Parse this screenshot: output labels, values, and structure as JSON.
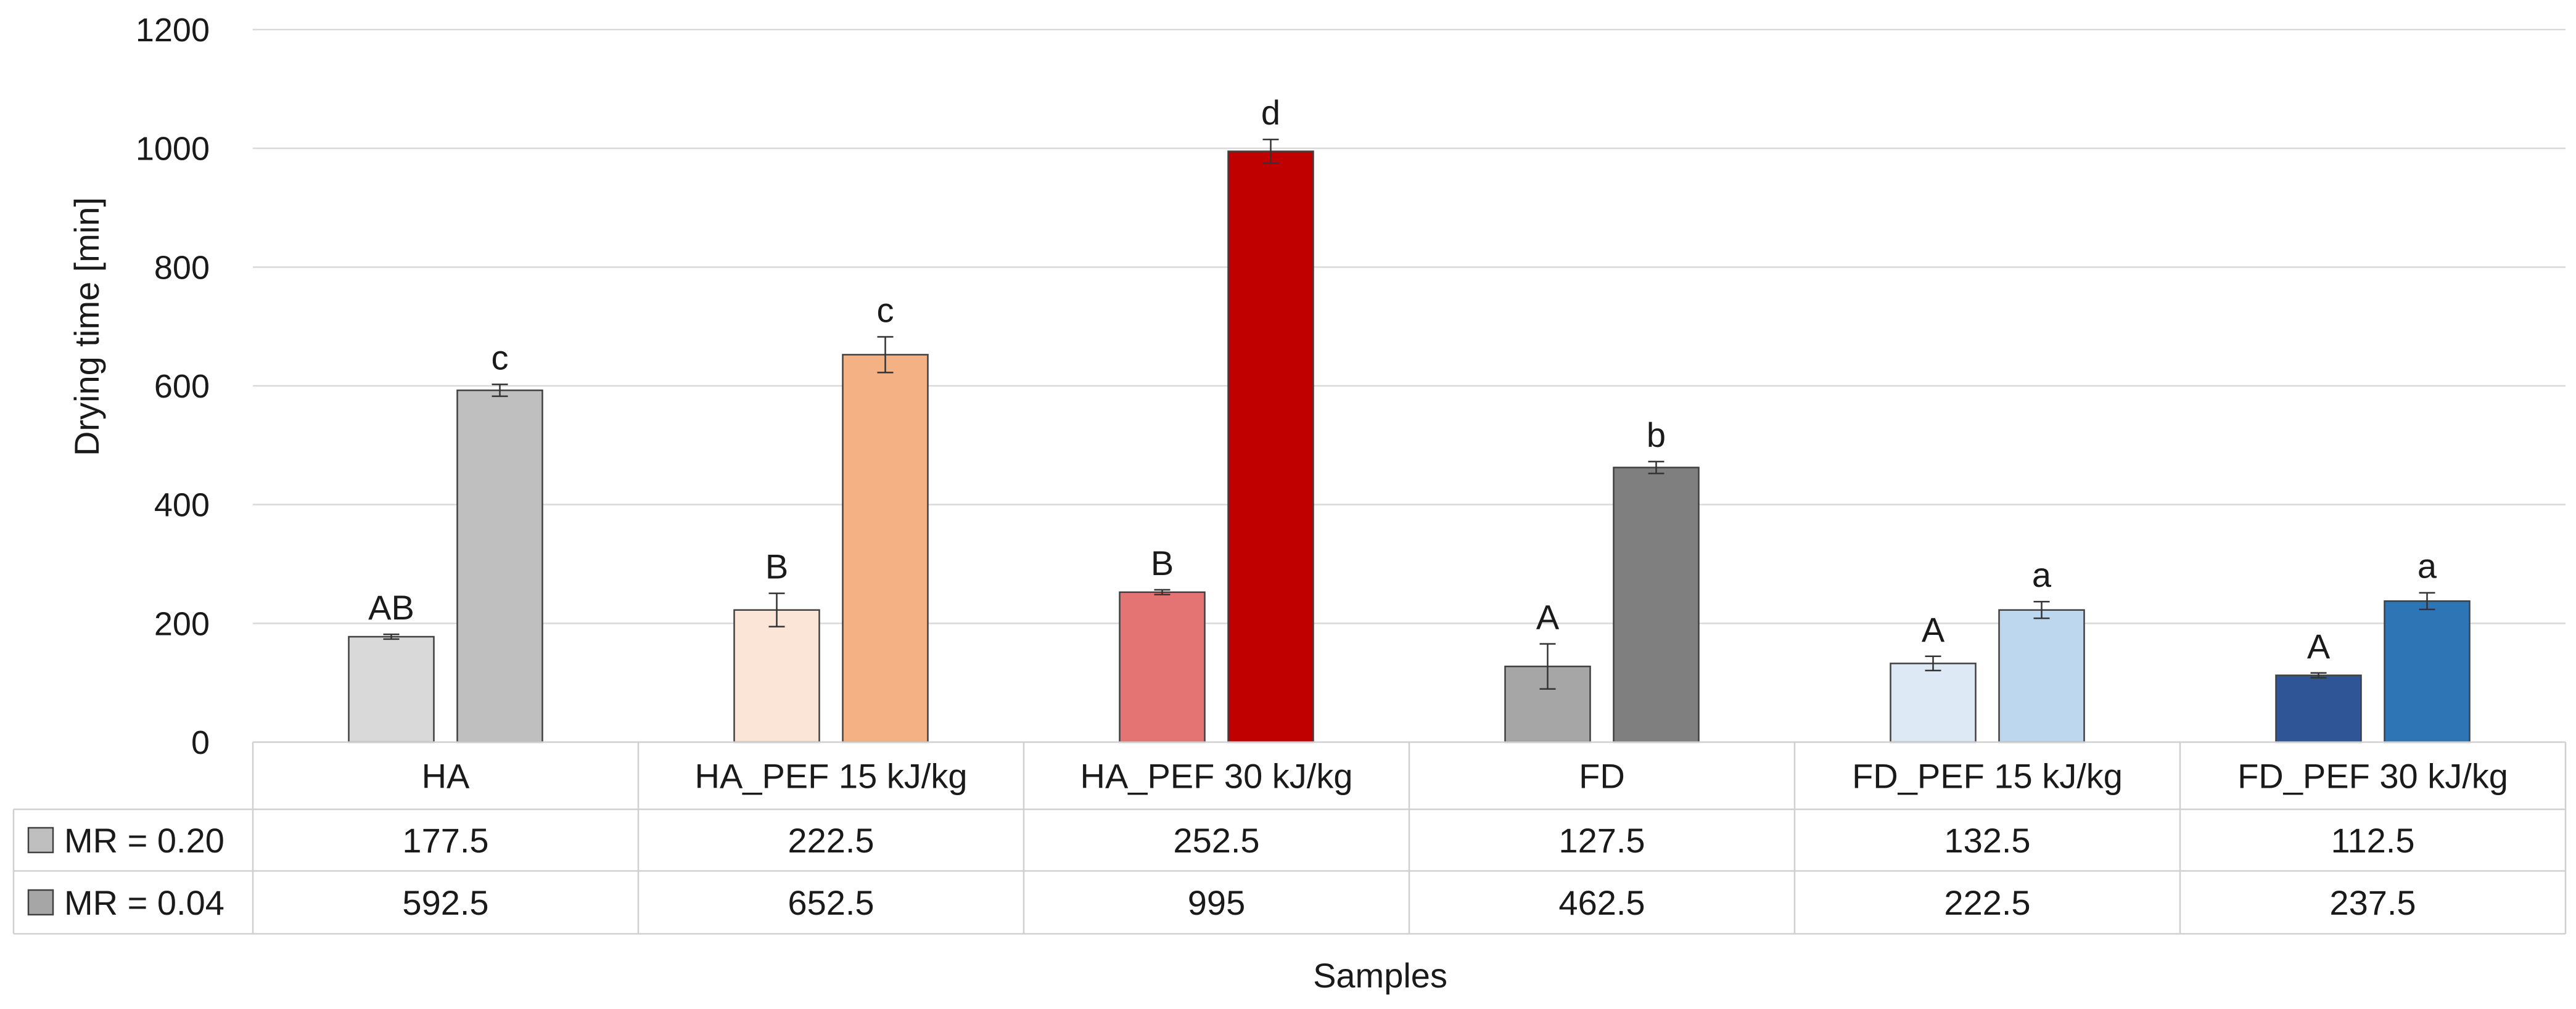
{
  "chart_data": {
    "type": "bar",
    "title": "",
    "xlabel": "Samples",
    "ylabel": "Drying time [min]",
    "ylim": [
      0,
      1200
    ],
    "yticks": [
      0,
      200,
      400,
      600,
      800,
      1000,
      1200
    ],
    "grid": true,
    "legend_placement": "data table rows",
    "categories": [
      "HA",
      "HA_PEF 15 kJ/kg",
      "HA_PEF 30 kJ/kg",
      "FD",
      "FD_PEF 15 kJ/kg",
      "FD_PEF 30 kJ/kg"
    ],
    "series": [
      {
        "name": "MR = 0.20",
        "values": [
          177.5,
          222.5,
          252.5,
          127.5,
          132.5,
          112.5
        ],
        "table_values": [
          "177.5",
          "222.5",
          "252.5",
          "127.5",
          "132.5",
          "112.5"
        ],
        "errors": [
          4,
          28,
          4,
          38,
          12,
          4
        ],
        "letters": [
          "AB",
          "B",
          "B",
          "A",
          "A",
          "A"
        ],
        "colors": [
          "#d9d9d9",
          "#fbe5d6",
          "#e47474",
          "#a6a6a6",
          "#dde9f5",
          "#2f5597"
        ],
        "legend_color": "#bfbfbf"
      },
      {
        "name": "MR = 0.04",
        "values": [
          592.5,
          652.5,
          995,
          462.5,
          222.5,
          237.5
        ],
        "table_values": [
          "592.5",
          "652.5",
          "995",
          "462.5",
          "222.5",
          "237.5"
        ],
        "errors": [
          10,
          30,
          20,
          10,
          14,
          14
        ],
        "letters": [
          "c",
          "c",
          "d",
          "b",
          "a",
          "a"
        ],
        "colors": [
          "#bfbfbf",
          "#f4b183",
          "#c00000",
          "#7f7f7f",
          "#bdd7ee",
          "#2e75b6"
        ],
        "legend_color": "#a6a6a6"
      }
    ]
  }
}
